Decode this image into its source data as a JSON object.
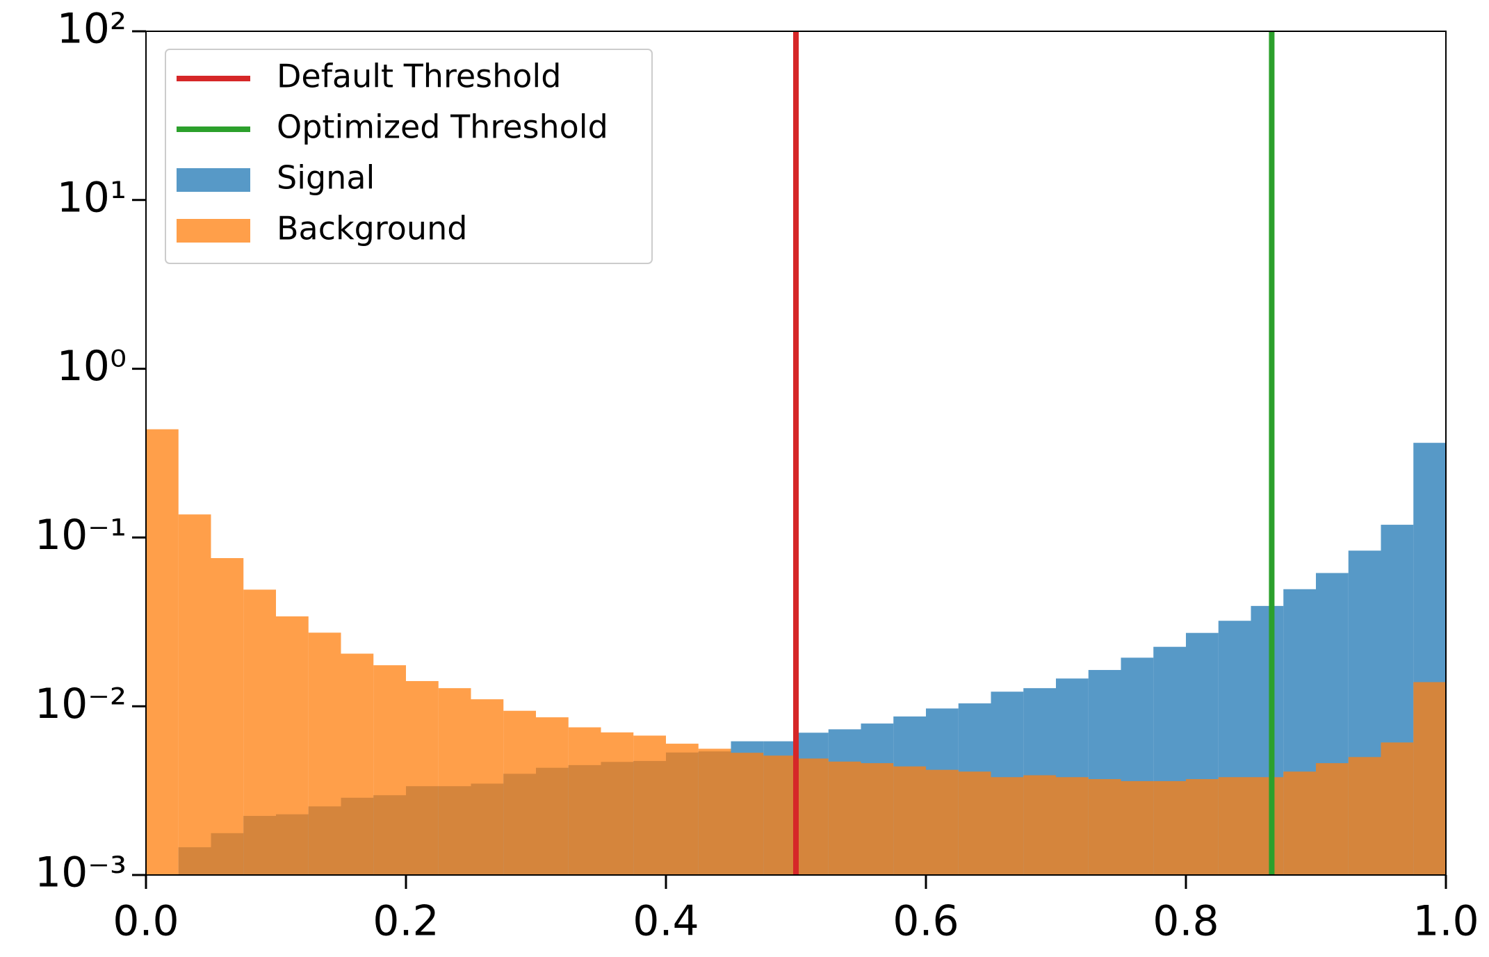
{
  "chart_data": {
    "type": "histogram",
    "bins": [
      0,
      0.025,
      0.05,
      0.075,
      0.1,
      0.125,
      0.15,
      0.175,
      0.2,
      0.225,
      0.25,
      0.275,
      0.3,
      0.325,
      0.35,
      0.375,
      0.4,
      0.425,
      0.45,
      0.475,
      0.5,
      0.525,
      0.55,
      0.575,
      0.6,
      0.625,
      0.65,
      0.675,
      0.7,
      0.725,
      0.75,
      0.775,
      0.8,
      0.825,
      0.85,
      0.875,
      0.9,
      0.925,
      0.95,
      0.975,
      1.0
    ],
    "series": [
      {
        "name": "Signal",
        "color": "#1f77b4",
        "values": [
          0,
          0.00146,
          0.00177,
          0.00224,
          0.00229,
          0.00255,
          0.00287,
          0.00297,
          0.00336,
          0.00336,
          0.00348,
          0.00398,
          0.00432,
          0.00448,
          0.00468,
          0.00474,
          0.00532,
          0.0054,
          0.0062,
          0.0062,
          0.00697,
          0.0073,
          0.0079,
          0.0087,
          0.0097,
          0.0104,
          0.0122,
          0.0128,
          0.0146,
          0.0164,
          0.0194,
          0.0225,
          0.0272,
          0.0321,
          0.0393,
          0.0494,
          0.0616,
          0.0836,
          0.119,
          0.364
        ]
      },
      {
        "name": "Background",
        "color": "#ff7f0e",
        "values": [
          0.438,
          0.137,
          0.0755,
          0.0491,
          0.0341,
          0.0273,
          0.0205,
          0.0175,
          0.0141,
          0.0128,
          0.011,
          0.0094,
          0.0086,
          0.0075,
          0.007,
          0.0067,
          0.006,
          0.0056,
          0.0053,
          0.0051,
          0.0049,
          0.0047,
          0.0046,
          0.0044,
          0.0042,
          0.0041,
          0.0038,
          0.0039,
          0.0038,
          0.0037,
          0.0036,
          0.0036,
          0.0037,
          0.0038,
          0.0038,
          0.0041,
          0.0046,
          0.005,
          0.0061,
          0.0139
        ]
      }
    ],
    "thresholds": [
      {
        "name": "Default Threshold",
        "color": "#d62728",
        "x": 0.5
      },
      {
        "name": "Optimized Threshold",
        "color": "#2ca02c",
        "x": 0.866
      }
    ],
    "log_y": true,
    "xlim": [
      0,
      1
    ],
    "ylim": [
      0.001,
      100
    ],
    "xticks": [
      {
        "value": 0,
        "label": "0.0"
      },
      0.2,
      0.4,
      0.6,
      0.8,
      {
        "value": 1,
        "label": "1.0"
      }
    ],
    "yticks": [
      {
        "value": 0.001,
        "label": "10⁻³"
      },
      {
        "value": 0.01,
        "label": "10⁻²"
      },
      {
        "value": 0.1,
        "label": "10⁻¹"
      },
      {
        "value": 1,
        "label": "10⁰"
      },
      {
        "value": 10,
        "label": "10¹"
      },
      {
        "value": 100,
        "label": "10²"
      }
    ],
    "legend": "upper left"
  }
}
